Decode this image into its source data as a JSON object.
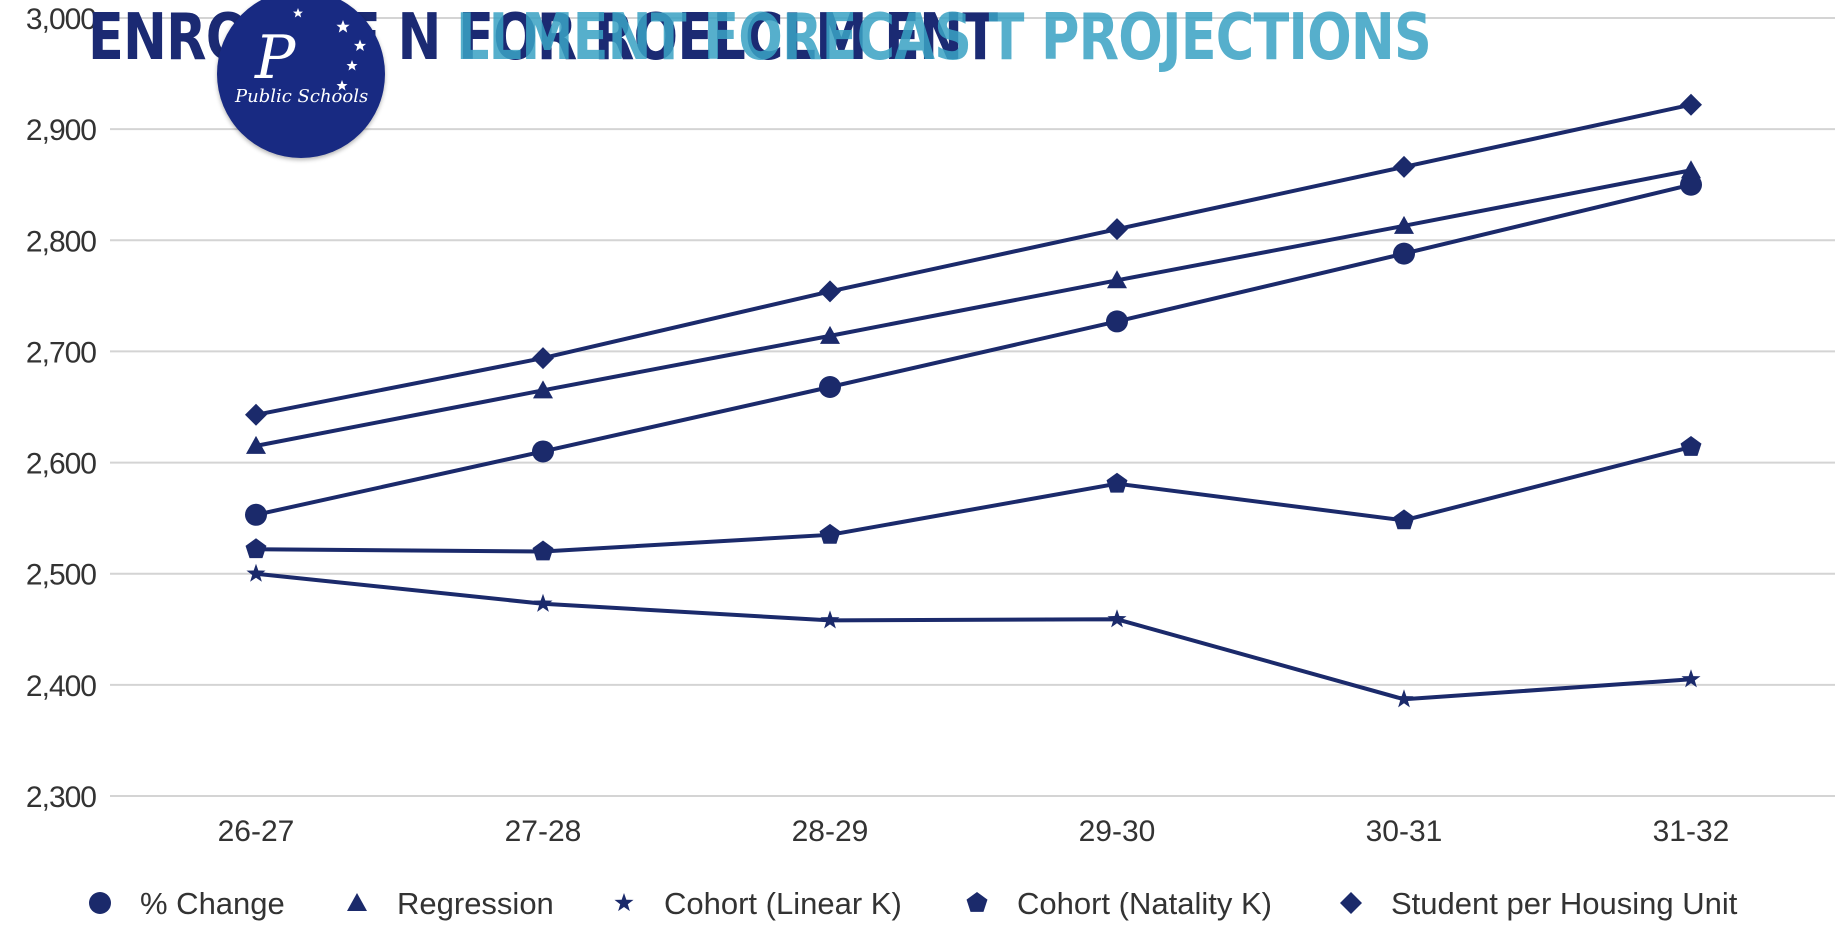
{
  "page": {
    "title_layer_a": "ENRO  NTE N FOR ROELCLM  ENT",
    "title_layer_b": "LLMENT FORECAS T PROJECTIONS",
    "logo_text": "Public Schools",
    "logo_letter": "P"
  },
  "colors": {
    "line": "#1b2a6b",
    "grid": "#d4d4d4",
    "text": "#333333",
    "title_dark": "#1b2a73",
    "title_light": "#3aa3c4",
    "logo_bg": "#182a82"
  },
  "icons": {
    "logo": "district-seal-icon"
  },
  "chart_data": {
    "type": "line",
    "title": "",
    "xlabel": "",
    "ylabel": "",
    "categories": [
      "26-27",
      "27-28",
      "28-29",
      "29-30",
      "30-31",
      "31-32"
    ],
    "ylim": [
      2300,
      3000
    ],
    "yticks": [
      2300,
      2400,
      2500,
      2600,
      2700,
      2800,
      2900,
      3000
    ],
    "ytick_labels": [
      "2,300",
      "2,400",
      "2,500",
      "2,600",
      "2,700",
      "2,800",
      "2,900",
      "3,000"
    ],
    "grid": true,
    "legend_position": "bottom",
    "series": [
      {
        "name": "% Change",
        "marker": "circle",
        "values": [
          2553,
          2610,
          2668,
          2727,
          2788,
          2850
        ]
      },
      {
        "name": "Regression",
        "marker": "triangle",
        "values": [
          2615,
          2665,
          2714,
          2764,
          2813,
          2863
        ]
      },
      {
        "name": "Cohort (Linear K)",
        "marker": "star",
        "values": [
          2500,
          2473,
          2458,
          2459,
          2387,
          2405
        ]
      },
      {
        "name": "Cohort (Natality K)",
        "marker": "pentagon",
        "values": [
          2522,
          2520,
          2535,
          2581,
          2548,
          2614
        ]
      },
      {
        "name": "Student per Housing Unit",
        "marker": "diamond",
        "values": [
          2643,
          2694,
          2754,
          2810,
          2866,
          2922
        ]
      }
    ]
  }
}
